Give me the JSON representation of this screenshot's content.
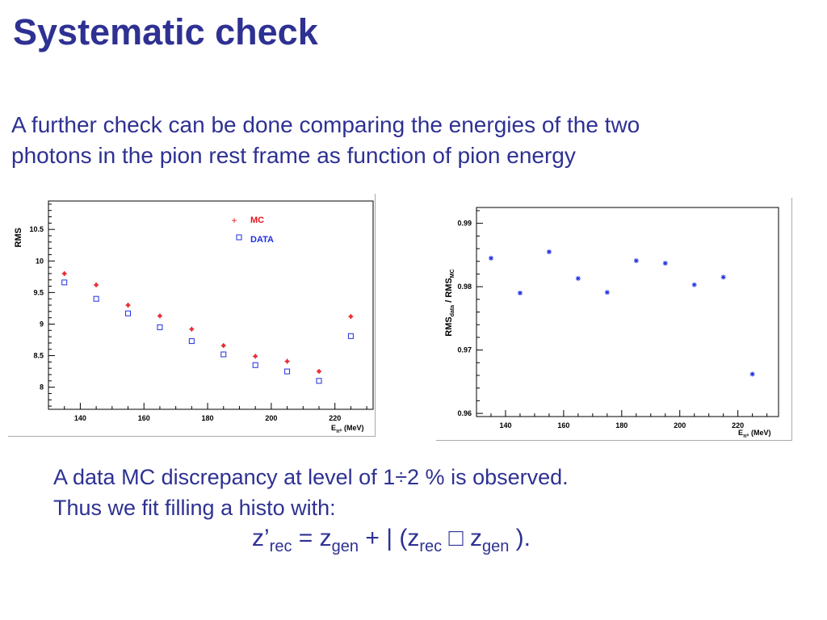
{
  "slide": {
    "title": "Systematic check",
    "intro_line1": "A further check can be done comparing the energies of the two",
    "intro_line2": "photons in the pion rest frame as function of pion energy",
    "conclusion_line1": "A data MC discrepancy at level of 1÷2 % is observed.",
    "conclusion_line2": "Thus we fit filling a histo with:",
    "formula": {
      "lhs": "z’",
      "lhs_sub": "rec",
      "eq": " = z",
      "gen_sub": "gen",
      "plus": " + ",
      "lambda": "|",
      "open": " (z",
      "rec_sub": "rec",
      "minus": " □ z",
      "gen_sub2": "gen",
      "close": " )."
    }
  },
  "chart_data": [
    {
      "type": "scatter",
      "ylabel": "RMS",
      "xlabel": "E",
      "xlabel_sub": "π⁰",
      "xlabel_unit": "(MeV)",
      "xlim": [
        130,
        232
      ],
      "ylim": [
        7.65,
        10.95
      ],
      "xticks": [
        140,
        160,
        180,
        200,
        220
      ],
      "yticks": [
        8,
        8.5,
        9,
        9.5,
        10,
        10.5
      ],
      "ytick_labels": [
        "8",
        "8.5",
        "9",
        "9.5",
        "10",
        "10.5"
      ],
      "grid": false,
      "legend_position": "top-right",
      "series": [
        {
          "name": "MC",
          "color": "#e8141e",
          "marker": "cross",
          "x": [
            135,
            145,
            155,
            165,
            175,
            185,
            195,
            205,
            215,
            225
          ],
          "values": [
            9.8,
            9.62,
            9.3,
            9.13,
            8.92,
            8.66,
            8.49,
            8.41,
            8.25,
            9.12
          ]
        },
        {
          "name": "DATA",
          "color": "#1e2ee0",
          "marker": "open-square",
          "x": [
            135,
            145,
            155,
            165,
            175,
            185,
            195,
            205,
            215,
            225
          ],
          "values": [
            9.66,
            9.4,
            9.17,
            8.95,
            8.73,
            8.52,
            8.35,
            8.25,
            8.1,
            8.81
          ]
        }
      ]
    },
    {
      "type": "scatter",
      "ylabel": "RMS",
      "ylabel_sub1": "data",
      "ylabel_mid": " / RMS",
      "ylabel_sub2": "MC",
      "xlabel": "E",
      "xlabel_sub": "π⁰",
      "xlabel_unit": "(MeV)",
      "xlim": [
        130,
        234
      ],
      "ylim": [
        0.9595,
        0.9925
      ],
      "xticks": [
        140,
        160,
        180,
        200,
        220
      ],
      "yticks": [
        0.96,
        0.97,
        0.98,
        0.99
      ],
      "ytick_labels": [
        "0.96",
        "0.97",
        "0.98",
        "0.99"
      ],
      "grid": false,
      "series": [
        {
          "color": "#1e2ee0",
          "marker": "star",
          "x": [
            135,
            145,
            155,
            165,
            175,
            185,
            195,
            205,
            215,
            225
          ],
          "values": [
            0.9845,
            0.979,
            0.9855,
            0.9813,
            0.9791,
            0.9841,
            0.9837,
            0.9803,
            0.9815,
            0.9662
          ]
        }
      ]
    }
  ]
}
